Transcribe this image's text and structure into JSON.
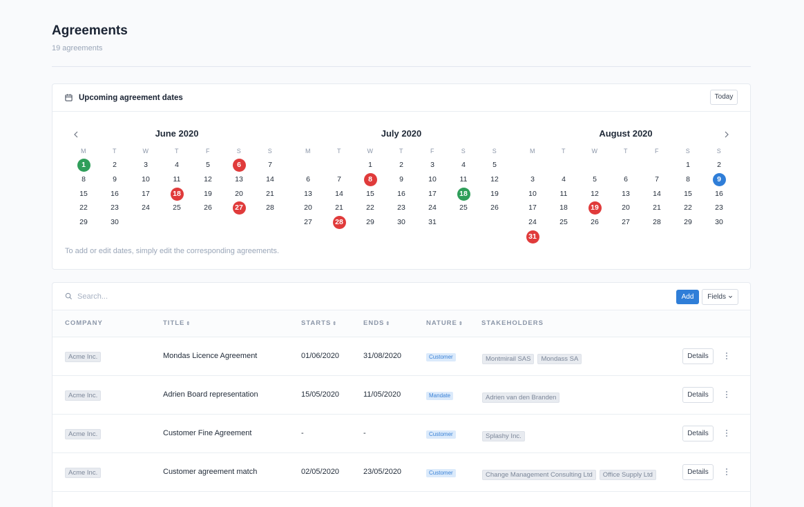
{
  "page": {
    "title": "Agreements",
    "subtitle": "19 agreements"
  },
  "calendar": {
    "title": "Upcoming agreement dates",
    "today_label": "Today",
    "note": "To add or edit dates, simply edit the corresponding agreements.",
    "weekdays": [
      "M",
      "T",
      "W",
      "T",
      "F",
      "S",
      "S"
    ],
    "months": [
      {
        "title": "June 2020",
        "first_weekday": 0,
        "days_in_month": 30,
        "highlights": [
          {
            "day": 1,
            "color": "green"
          },
          {
            "day": 6,
            "color": "red"
          },
          {
            "day": 18,
            "color": "red"
          },
          {
            "day": 27,
            "color": "red"
          }
        ]
      },
      {
        "title": "July 2020",
        "first_weekday": 2,
        "days_in_month": 31,
        "highlights": [
          {
            "day": 8,
            "color": "red"
          },
          {
            "day": 18,
            "color": "green"
          },
          {
            "day": 28,
            "color": "red"
          }
        ]
      },
      {
        "title": "August 2020",
        "first_weekday": 5,
        "days_in_month": 31,
        "highlights": [
          {
            "day": 9,
            "color": "blue"
          },
          {
            "day": 19,
            "color": "red"
          },
          {
            "day": 31,
            "color": "red"
          }
        ]
      }
    ],
    "colors": {
      "red": "#e03b3b",
      "green": "#2f9e5a",
      "blue": "#2f7ed8"
    }
  },
  "table": {
    "search_placeholder": "Search...",
    "add_label": "Add",
    "fields_label": "Fields",
    "columns": {
      "company": "COMPANY",
      "title": "TITLE",
      "starts": "STARTS",
      "ends": "ENDS",
      "nature": "NATURE",
      "stakeholders": "STAKEHOLDERS"
    },
    "details_label": "Details",
    "rows": [
      {
        "company": "Acme Inc.",
        "title": "Mondas Licence Agreement",
        "starts": "01/06/2020",
        "ends": "31/08/2020",
        "nature": "Customer",
        "stakeholders": [
          "Montmirail SAS",
          "Mondass SA"
        ]
      },
      {
        "company": "Acme Inc.",
        "title": "Adrien Board representation",
        "starts": "15/05/2020",
        "ends": "11/05/2020",
        "nature": "Mandate",
        "stakeholders": [
          "Adrien van den Branden"
        ]
      },
      {
        "company": "Acme Inc.",
        "title": "Customer Fine Agreement",
        "starts": "-",
        "ends": "-",
        "nature": "Customer",
        "stakeholders": [
          "Splashy Inc."
        ]
      },
      {
        "company": "Acme Inc.",
        "title": "Customer agreement match",
        "starts": "02/05/2020",
        "ends": "23/05/2020",
        "nature": "Customer",
        "stakeholders": [
          "Change Management Consulting Ltd",
          "Office Supply Ltd"
        ]
      }
    ]
  }
}
